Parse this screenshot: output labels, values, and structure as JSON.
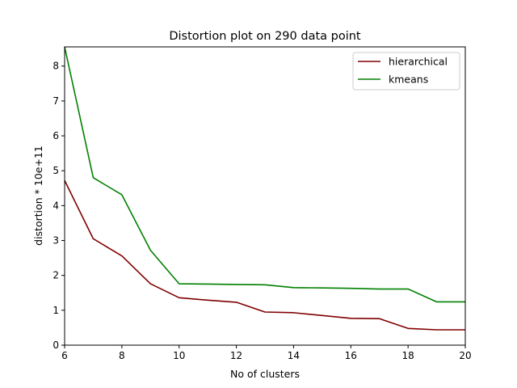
{
  "chart_data": {
    "type": "line",
    "title": "Distortion plot on 290 data point",
    "xlabel": "No of clusters",
    "ylabel": "distortion * 10e+11",
    "xlim": [
      6,
      20
    ],
    "ylim": [
      0,
      8.55
    ],
    "xticks": [
      "6",
      "8",
      "10",
      "12",
      "14",
      "16",
      "18",
      "20"
    ],
    "yticks": [
      "0",
      "1",
      "2",
      "3",
      "4",
      "5",
      "6",
      "7",
      "8"
    ],
    "grid": false,
    "legend_position": "upper right",
    "series": [
      {
        "name": "hierarchical",
        "color": "#800000",
        "x": [
          6,
          7,
          8,
          9,
          10,
          11,
          12,
          13,
          14,
          15,
          16,
          17,
          18,
          19,
          20
        ],
        "y": [
          4.72,
          3.05,
          2.56,
          1.76,
          1.36,
          1.29,
          1.23,
          0.95,
          0.93,
          0.85,
          0.77,
          0.76,
          0.48,
          0.44,
          0.44
        ]
      },
      {
        "name": "kmeans",
        "color": "#008000",
        "x": [
          6,
          7,
          8,
          9,
          10,
          11,
          12,
          13,
          14,
          15,
          16,
          17,
          18,
          19,
          20
        ],
        "y": [
          8.55,
          4.8,
          4.31,
          2.72,
          1.76,
          1.75,
          1.74,
          1.73,
          1.65,
          1.64,
          1.63,
          1.61,
          1.61,
          1.24,
          1.24
        ]
      }
    ]
  }
}
